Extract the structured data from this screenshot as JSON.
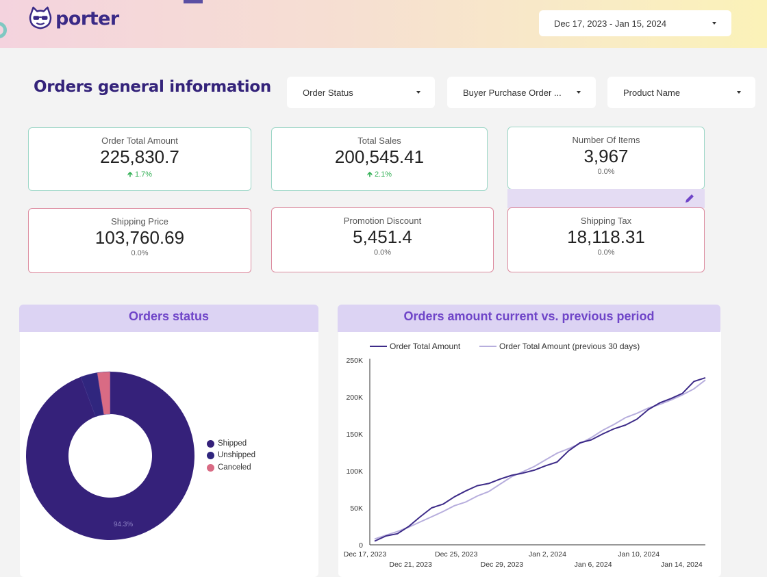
{
  "app": {
    "logo_text": "porter"
  },
  "header": {
    "date_range": "Dec 17, 2023 - Jan 15, 2024"
  },
  "section": {
    "title": "Orders general information"
  },
  "filters": [
    {
      "label": "Order Status"
    },
    {
      "label": "Buyer Purchase Order ..."
    },
    {
      "label": "Product Name"
    }
  ],
  "kpis": {
    "order_total_amount": {
      "label": "Order Total Amount",
      "value": "225,830.7",
      "delta": "1.7%"
    },
    "total_sales": {
      "label": "Total Sales",
      "value": "200,545.41",
      "delta": "2.1%"
    },
    "number_of_items": {
      "label": "Number Of Items",
      "value": "3,967",
      "delta": "0.0%"
    },
    "shipping_price": {
      "label": "Shipping Price",
      "value": "103,760.69",
      "delta": "0.0%"
    },
    "promotion_discount": {
      "label": "Promotion Discount",
      "value": "5,451.4",
      "delta": "0.0%"
    },
    "shipping_tax": {
      "label": "Shipping Tax",
      "value": "18,118.31",
      "delta": "0.0%"
    }
  },
  "colors": {
    "brand": "#34237a",
    "shipped": "#35217a",
    "unshipped": "#30267e",
    "canceled": "#d96b84",
    "accent": "#6f45c8"
  },
  "chart_data": [
    {
      "type": "pie",
      "title": "Orders status",
      "categories": [
        "Shipped",
        "Unshipped",
        "Canceled"
      ],
      "values": [
        94.3,
        3.2,
        2.5
      ],
      "label": "94.3%",
      "legend": "right"
    },
    {
      "type": "line",
      "title": "Orders amount current vs. previous period",
      "series": [
        {
          "name": "Order Total Amount",
          "values": [
            5000,
            12000,
            15000,
            25000,
            38000,
            50000,
            55000,
            65000,
            73000,
            80000,
            83000,
            89000,
            94000,
            97000,
            101000,
            107000,
            112000,
            127000,
            138000,
            142000,
            150000,
            157000,
            162000,
            170000,
            183000,
            192000,
            198000,
            205000,
            221000,
            226000
          ]
        },
        {
          "name": "Order Total Amount (previous 30 days)",
          "values": [
            8000,
            13000,
            18000,
            24000,
            31000,
            38000,
            45000,
            53000,
            58000,
            66000,
            72000,
            82000,
            92000,
            99000,
            106000,
            115000,
            124000,
            130000,
            137000,
            145000,
            155000,
            163000,
            172000,
            178000,
            185000,
            190000,
            196000,
            203000,
            211000,
            223000
          ]
        }
      ],
      "x_labels": [
        "Dec 17, 2023",
        "Dec 21, 2023",
        "Dec 25, 2023",
        "Dec 29, 2023",
        "Jan 2, 2024",
        "Jan 6, 2024",
        "Jan 10, 2024",
        "Jan 14, 2024"
      ],
      "y_ticks": [
        "0",
        "50K",
        "100K",
        "150K",
        "200K",
        "250K"
      ],
      "ylim": [
        0,
        250000
      ],
      "legend": "top"
    }
  ]
}
